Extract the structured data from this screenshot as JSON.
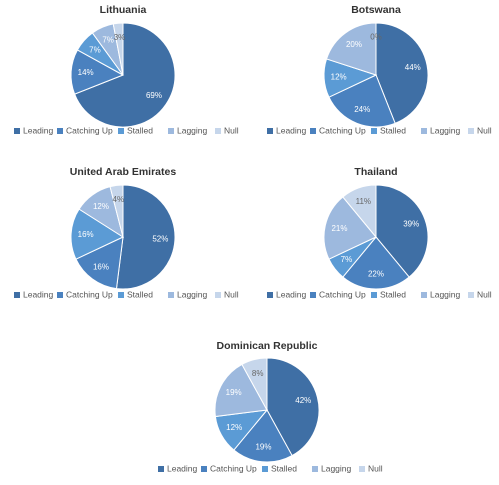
{
  "chart_data": [
    {
      "type": "pie",
      "title": "Lithuania",
      "categories": [
        "Leading",
        "Catching Up",
        "Stalled",
        "Lagging",
        "Null"
      ],
      "values": [
        69,
        14,
        7,
        7,
        3
      ],
      "value_labels": [
        "69%",
        "14%",
        "7%",
        "7%",
        "3%"
      ],
      "colors": [
        "#3f6fa5",
        "#4a81bf",
        "#5b9bd5",
        "#9db9de",
        "#c6d6eb"
      ]
    },
    {
      "type": "pie",
      "title": "Botswana",
      "categories": [
        "Leading",
        "Catching Up",
        "Stalled",
        "Lagging",
        "Null"
      ],
      "values": [
        44,
        24,
        12,
        20,
        0
      ],
      "value_labels": [
        "44%",
        "24%",
        "12%",
        "20%",
        "0%"
      ],
      "colors": [
        "#3f6fa5",
        "#4a81bf",
        "#5b9bd5",
        "#9db9de",
        "#c6d6eb"
      ]
    },
    {
      "type": "pie",
      "title": "United Arab Emirates",
      "categories": [
        "Leading",
        "Catching Up",
        "Stalled",
        "Lagging",
        "Null"
      ],
      "values": [
        52,
        16,
        16,
        12,
        4
      ],
      "value_labels": [
        "52%",
        "16%",
        "16%",
        "12%",
        "4%"
      ],
      "colors": [
        "#3f6fa5",
        "#4a81bf",
        "#5b9bd5",
        "#9db9de",
        "#c6d6eb"
      ]
    },
    {
      "type": "pie",
      "title": "Thailand",
      "categories": [
        "Leading",
        "Catching Up",
        "Stalled",
        "Lagging",
        "Null"
      ],
      "values": [
        39,
        22,
        7,
        21,
        11
      ],
      "value_labels": [
        "39%",
        "22%",
        "7%",
        "21%",
        "11%"
      ],
      "colors": [
        "#3f6fa5",
        "#4a81bf",
        "#5b9bd5",
        "#9db9de",
        "#c6d6eb"
      ]
    },
    {
      "type": "pie",
      "title": "Dominican Republic",
      "categories": [
        "Leading",
        "Catching Up",
        "Stalled",
        "Lagging",
        "Null"
      ],
      "values": [
        42,
        19,
        12,
        19,
        8
      ],
      "value_labels": [
        "42%",
        "19%",
        "12%",
        "19%",
        "8%"
      ],
      "colors": [
        "#3f6fa5",
        "#4a81bf",
        "#5b9bd5",
        "#9db9de",
        "#c6d6eb"
      ]
    }
  ]
}
